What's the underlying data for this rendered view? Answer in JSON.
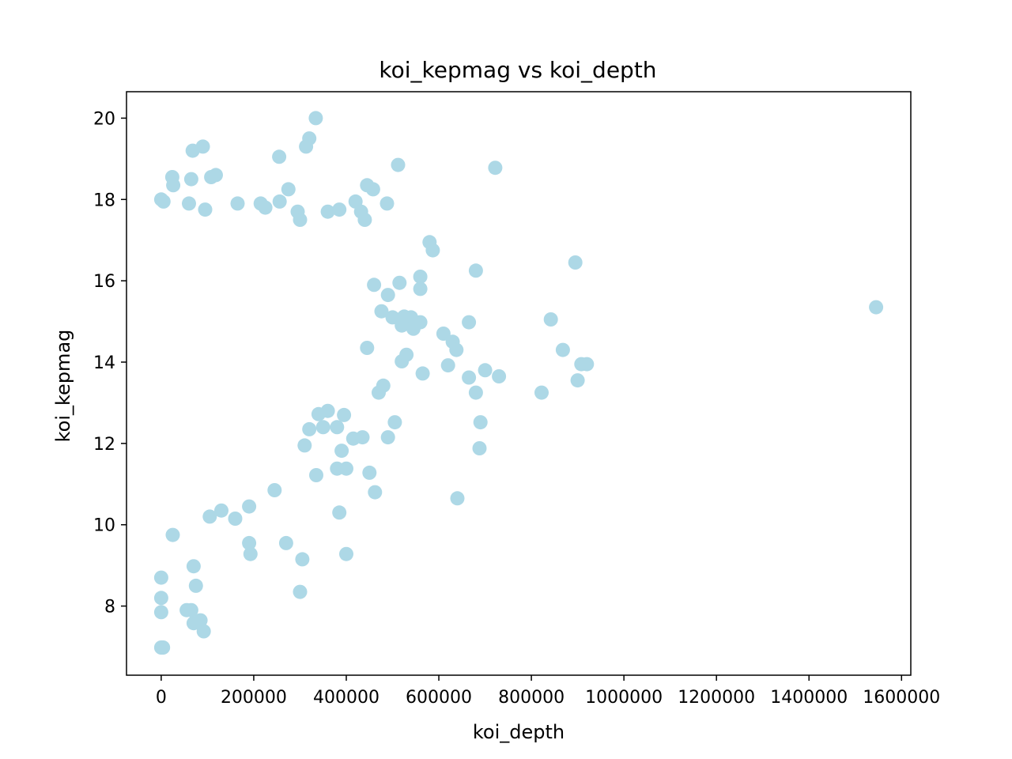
{
  "chart_data": {
    "type": "scatter",
    "title": "koi_kepmag vs koi_depth",
    "xlabel": "koi_depth",
    "ylabel": "koi_kepmag",
    "xlim": [
      -75000,
      1620000
    ],
    "ylim": [
      6.3,
      20.65
    ],
    "x_ticks": [
      0,
      200000,
      400000,
      600000,
      800000,
      1000000,
      1200000,
      1400000,
      1600000
    ],
    "x_tick_labels": [
      "0",
      "200000",
      "400000",
      "600000",
      "800000",
      "1000000",
      "1200000",
      "1400000",
      "1600000"
    ],
    "y_ticks": [
      8,
      10,
      12,
      14,
      16,
      18,
      20
    ],
    "y_tick_labels": [
      "8",
      "10",
      "12",
      "14",
      "16",
      "18",
      "20"
    ],
    "grid": false,
    "marker_color": "#add8e6",
    "points": [
      [
        334000,
        20.0
      ],
      [
        90000,
        19.3
      ],
      [
        68000,
        19.2
      ],
      [
        320000,
        19.5
      ],
      [
        313000,
        19.3
      ],
      [
        255000,
        19.05
      ],
      [
        512000,
        18.85
      ],
      [
        722000,
        18.78
      ],
      [
        24000,
        18.55
      ],
      [
        118000,
        18.6
      ],
      [
        108000,
        18.55
      ],
      [
        65000,
        18.5
      ],
      [
        26000,
        18.35
      ],
      [
        445000,
        18.35
      ],
      [
        458000,
        18.25
      ],
      [
        275000,
        18.25
      ],
      [
        0,
        18.0
      ],
      [
        5000,
        17.95
      ],
      [
        60000,
        17.9
      ],
      [
        165000,
        17.9
      ],
      [
        215000,
        17.9
      ],
      [
        256000,
        17.95
      ],
      [
        420000,
        17.95
      ],
      [
        488000,
        17.9
      ],
      [
        95000,
        17.75
      ],
      [
        225000,
        17.8
      ],
      [
        295000,
        17.7
      ],
      [
        360000,
        17.7
      ],
      [
        385000,
        17.75
      ],
      [
        432000,
        17.7
      ],
      [
        440000,
        17.5
      ],
      [
        300000,
        17.5
      ],
      [
        580000,
        16.95
      ],
      [
        587000,
        16.75
      ],
      [
        895000,
        16.45
      ],
      [
        680000,
        16.25
      ],
      [
        560000,
        16.1
      ],
      [
        460000,
        15.9
      ],
      [
        515000,
        15.95
      ],
      [
        560000,
        15.8
      ],
      [
        1545000,
        15.35
      ],
      [
        842000,
        15.05
      ],
      [
        665000,
        14.98
      ],
      [
        560000,
        14.98
      ],
      [
        610000,
        14.7
      ],
      [
        630000,
        14.5
      ],
      [
        638000,
        14.3
      ],
      [
        868000,
        14.3
      ],
      [
        908000,
        13.95
      ],
      [
        920000,
        13.95
      ],
      [
        620000,
        13.92
      ],
      [
        700000,
        13.8
      ],
      [
        730000,
        13.65
      ],
      [
        665000,
        13.62
      ],
      [
        565000,
        13.72
      ],
      [
        900000,
        13.55
      ],
      [
        680000,
        13.25
      ],
      [
        822000,
        13.25
      ],
      [
        690000,
        12.52
      ],
      [
        505000,
        12.52
      ],
      [
        490000,
        12.15
      ],
      [
        688000,
        11.88
      ],
      [
        450000,
        11.28
      ],
      [
        462000,
        10.8
      ],
      [
        640000,
        10.65
      ],
      [
        385000,
        10.3
      ],
      [
        400000,
        9.28
      ],
      [
        193000,
        9.28
      ],
      [
        190000,
        9.55
      ],
      [
        270000,
        9.55
      ],
      [
        305000,
        9.15
      ],
      [
        300000,
        8.35
      ],
      [
        70000,
        8.98
      ],
      [
        75000,
        8.5
      ],
      [
        55000,
        7.9
      ],
      [
        65000,
        7.9
      ],
      [
        85000,
        7.65
      ],
      [
        70000,
        7.58
      ],
      [
        92000,
        7.38
      ],
      [
        0,
        8.2
      ],
      [
        0,
        7.85
      ],
      [
        0,
        6.98
      ],
      [
        4000,
        6.98
      ],
      [
        0,
        8.7
      ],
      [
        25000,
        9.75
      ],
      [
        130000,
        10.35
      ],
      [
        105000,
        10.2
      ],
      [
        160000,
        10.15
      ],
      [
        190000,
        10.45
      ],
      [
        245000,
        10.85
      ],
      [
        335000,
        11.22
      ],
      [
        380000,
        11.38
      ],
      [
        400000,
        11.38
      ],
      [
        390000,
        11.82
      ],
      [
        415000,
        12.12
      ],
      [
        435000,
        12.15
      ],
      [
        310000,
        11.95
      ],
      [
        320000,
        12.35
      ],
      [
        350000,
        12.4
      ],
      [
        380000,
        12.4
      ],
      [
        395000,
        12.7
      ],
      [
        340000,
        12.72
      ],
      [
        360000,
        12.8
      ],
      [
        470000,
        13.25
      ],
      [
        480000,
        13.42
      ],
      [
        520000,
        14.02
      ],
      [
        530000,
        14.18
      ],
      [
        540000,
        15.1
      ],
      [
        500000,
        15.1
      ],
      [
        525000,
        15.12
      ],
      [
        490000,
        15.65
      ],
      [
        476000,
        15.25
      ],
      [
        445000,
        14.35
      ],
      [
        520000,
        14.9
      ],
      [
        545000,
        14.82
      ]
    ]
  }
}
